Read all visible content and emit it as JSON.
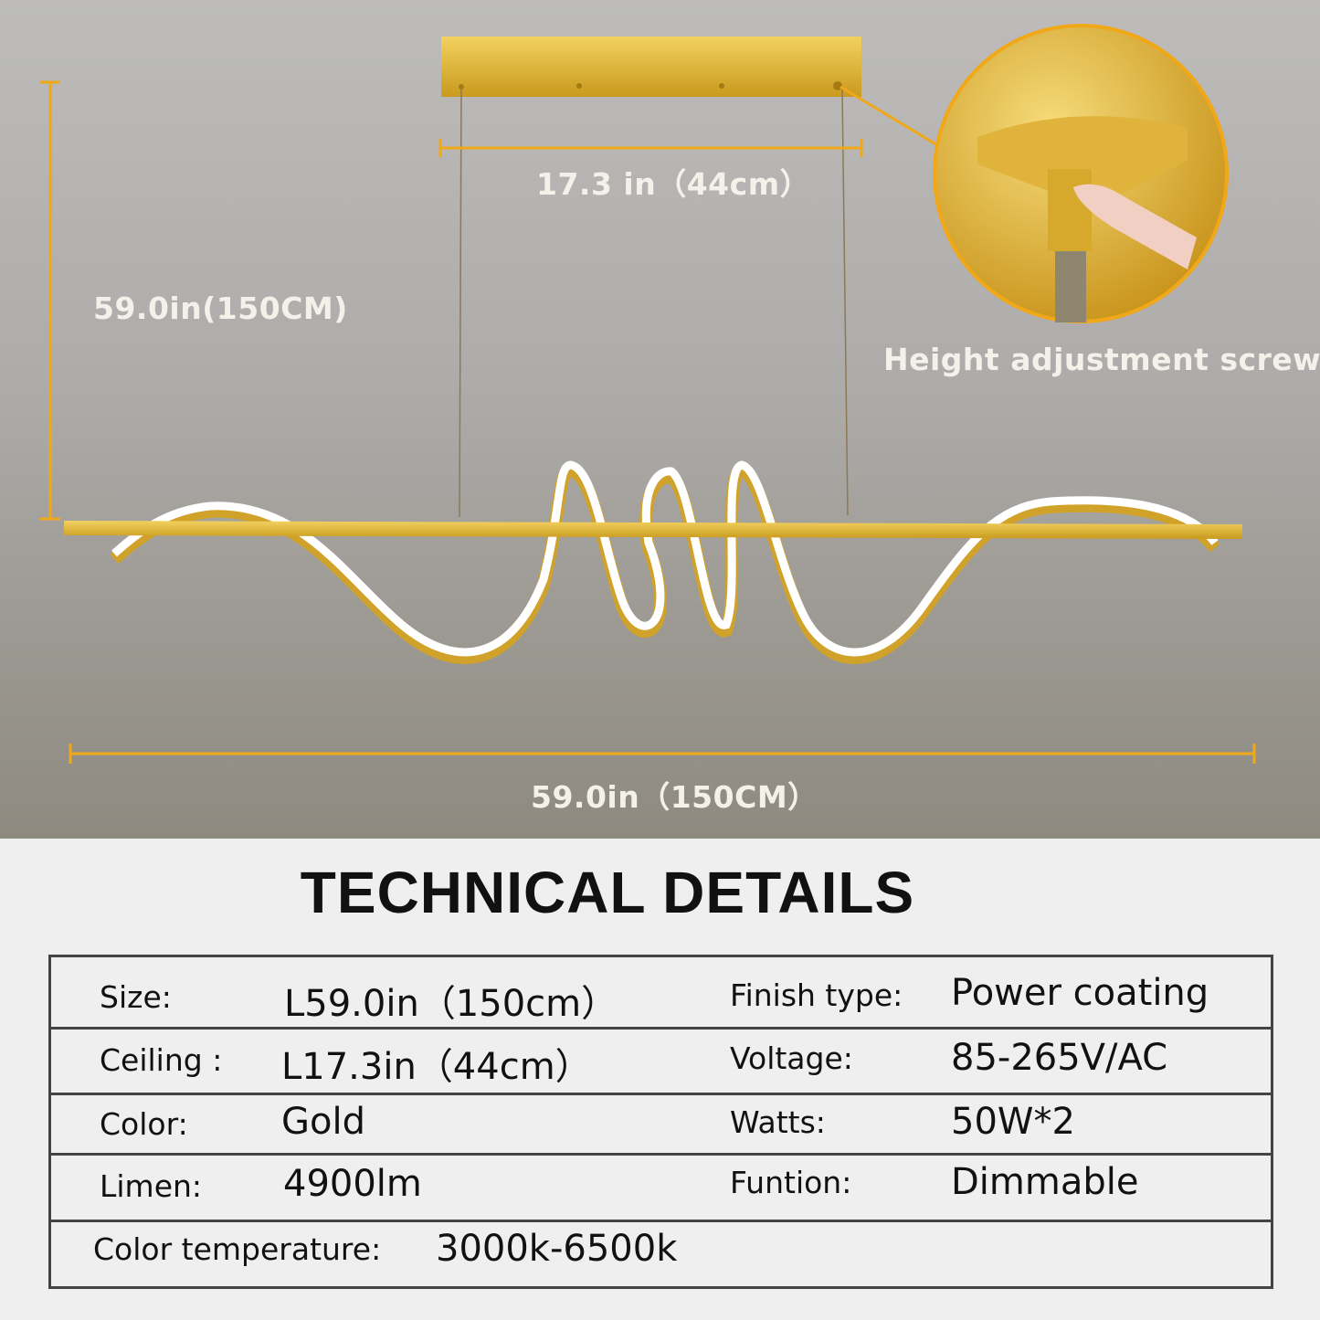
{
  "dimensions": {
    "ceiling_width": "17.3 in（44cm）",
    "height": "59.0in(150CM)",
    "length": "59.0in（150CM）",
    "screw_caption": "Height adjustment screw"
  },
  "colors": {
    "gold": "#e1b530",
    "dimension_line": "#f0a818",
    "table_border": "#444444"
  },
  "title": "TECHNICAL DETAILS",
  "specs": [
    {
      "left_label": "Size:",
      "left_value": "L59.0in（150cm）",
      "right_label": "Finish type:",
      "right_value": "Power coating"
    },
    {
      "left_label": "Ceiling :",
      "left_value": "L17.3in（44cm）",
      "right_label": "Voltage:",
      "right_value": "85-265V/AC"
    },
    {
      "left_label": "Color:",
      "left_value": "Gold",
      "right_label": "Watts:",
      "right_value": "50W*2"
    },
    {
      "left_label": "Limen:",
      "left_value": "4900lm",
      "right_label": "Funtion:",
      "right_value": "Dimmable"
    },
    {
      "left_label": "Color  temperature:",
      "left_value": "3000k-6500k"
    }
  ]
}
